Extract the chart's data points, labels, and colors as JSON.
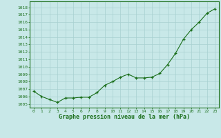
{
  "x": [
    0,
    1,
    2,
    3,
    4,
    5,
    6,
    7,
    8,
    9,
    10,
    11,
    12,
    13,
    14,
    15,
    16,
    17,
    18,
    19,
    20,
    21,
    22,
    23
  ],
  "y": [
    1006.7,
    1006.0,
    1005.6,
    1005.2,
    1005.8,
    1005.8,
    1005.9,
    1005.9,
    1006.5,
    1007.5,
    1008.0,
    1008.6,
    1009.0,
    1008.5,
    1008.5,
    1008.6,
    1009.1,
    1010.3,
    1011.8,
    1013.7,
    1015.0,
    1016.0,
    1017.2,
    1017.8
  ],
  "line_color": "#1a6e1a",
  "marker_color": "#1a6e1a",
  "bg_color": "#c8e8e8",
  "grid_color": "#a8d0d0",
  "title": "Graphe pression niveau de la mer (hPa)",
  "ylabel_min": 1005,
  "ylabel_max": 1018,
  "ylabel_step": 1,
  "xlim": [
    -0.5,
    23.5
  ],
  "ylim": [
    1004.5,
    1018.8
  ]
}
